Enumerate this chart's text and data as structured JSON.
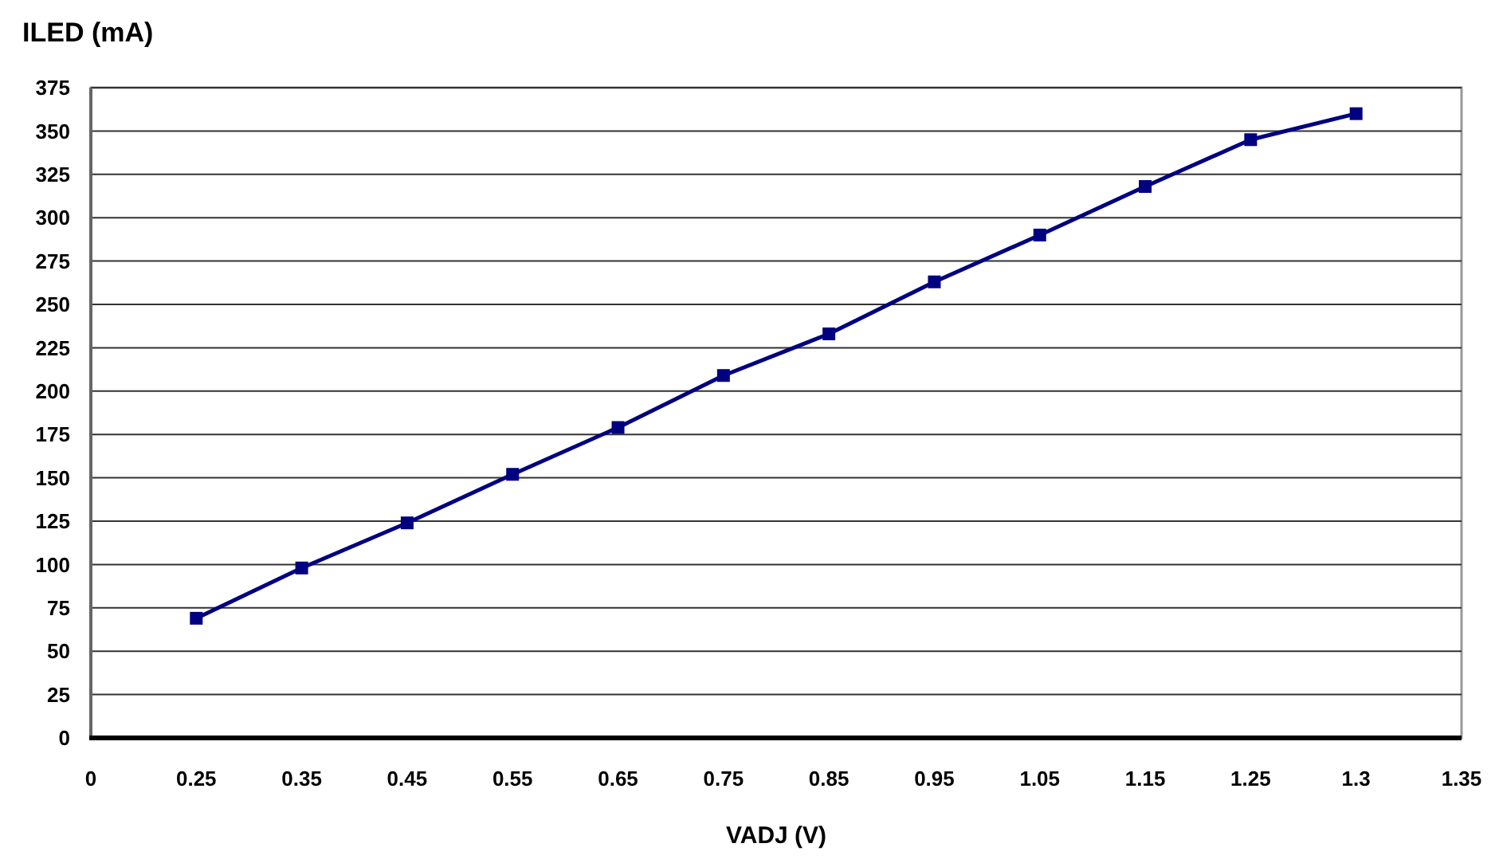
{
  "chart_data": {
    "type": "line",
    "xlabel": "VADJ (V)",
    "ylabel": "ILED (mA)",
    "categories": [
      "0",
      "0.25",
      "0.35",
      "0.45",
      "0.55",
      "0.65",
      "0.75",
      "0.85",
      "0.95",
      "1.05",
      "1.15",
      "1.25",
      "1.3",
      "1.35"
    ],
    "series": [
      {
        "color": "#000080",
        "values": [
          null,
          69,
          98,
          124,
          152,
          179,
          209,
          233,
          263,
          290,
          318,
          345,
          360,
          null
        ]
      }
    ],
    "ylim": [
      0,
      375
    ],
    "yticks": [
      0,
      25,
      50,
      75,
      100,
      125,
      150,
      175,
      200,
      225,
      250,
      275,
      300,
      325,
      350,
      375
    ],
    "grid": "y",
    "marker": "square",
    "line_style": "solid"
  }
}
